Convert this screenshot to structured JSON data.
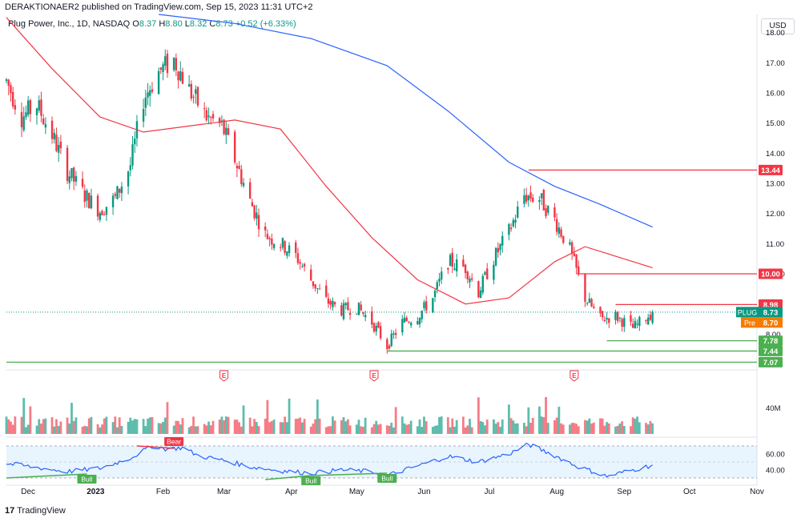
{
  "header": {
    "publisher": "DERAKTIONAER2 published on TradingView.com, Sep 15, 2023 11:31 UTC+2",
    "symbol": "Plug Power, Inc., 1D, NASDAQ",
    "o_label": "O",
    "o_value": "8.37",
    "h_label": "H",
    "h_value": "8.80",
    "l_label": "L",
    "l_value": "8.32",
    "c_label": "C",
    "c_value": "8.73",
    "change": "+0.52 (+6.33%)",
    "currency": "USD"
  },
  "footer": {
    "brand": "TradingView"
  },
  "chart_data": {
    "type": "candlestick",
    "y_axis": {
      "range": [
        7.0,
        18.6
      ],
      "ticks": [
        8.0,
        9.0,
        10.0,
        11.0,
        12.0,
        13.0,
        14.0,
        15.0,
        16.0,
        17.0,
        18.0
      ],
      "tick_labels": [
        "8.00",
        "9.00",
        "10.00",
        "11.00",
        "12.00",
        "13.00",
        "14.00",
        "15.00",
        "16.00",
        "17.00",
        "18.00"
      ]
    },
    "x_axis": {
      "range": [
        "2022-11-21",
        "2023-11-01"
      ],
      "ticks": [
        {
          "date": "2022-12-01",
          "label": "Dec"
        },
        {
          "date": "2023-01-01",
          "label": "2023"
        },
        {
          "date": "2023-02-01",
          "label": "Feb"
        },
        {
          "date": "2023-03-01",
          "label": "Mar"
        },
        {
          "date": "2023-04-01",
          "label": "Apr"
        },
        {
          "date": "2023-05-01",
          "label": "May"
        },
        {
          "date": "2023-06-01",
          "label": "Jun"
        },
        {
          "date": "2023-07-01",
          "label": "Jul"
        },
        {
          "date": "2023-08-01",
          "label": "Aug"
        },
        {
          "date": "2023-09-01",
          "label": "Sep"
        },
        {
          "date": "2023-10-01",
          "label": "Oct"
        },
        {
          "date": "2023-11-01",
          "label": "Nov"
        }
      ]
    },
    "price_path": [
      [
        "2022-11-21",
        16.4
      ],
      [
        "2022-11-28",
        15.2
      ],
      [
        "2022-12-05",
        15.6
      ],
      [
        "2022-12-12",
        14.6
      ],
      [
        "2022-12-19",
        13.4
      ],
      [
        "2022-12-27",
        12.6
      ],
      [
        "2023-01-03",
        12.1
      ],
      [
        "2023-01-10",
        12.5
      ],
      [
        "2023-01-17",
        13.6
      ],
      [
        "2023-01-23",
        15.8
      ],
      [
        "2023-01-30",
        16.7
      ],
      [
        "2023-02-06",
        17.1
      ],
      [
        "2023-02-13",
        16.1
      ],
      [
        "2023-02-21",
        15.2
      ],
      [
        "2023-02-28",
        14.9
      ],
      [
        "2023-03-06",
        13.8
      ],
      [
        "2023-03-13",
        12.4
      ],
      [
        "2023-03-20",
        11.3
      ],
      [
        "2023-03-27",
        11.0
      ],
      [
        "2023-04-03",
        10.6
      ],
      [
        "2023-04-10",
        9.8
      ],
      [
        "2023-04-17",
        9.1
      ],
      [
        "2023-04-24",
        8.8
      ],
      [
        "2023-05-01",
        8.9
      ],
      [
        "2023-05-08",
        8.4
      ],
      [
        "2023-05-15",
        7.6
      ],
      [
        "2023-05-22",
        8.4
      ],
      [
        "2023-05-29",
        8.6
      ],
      [
        "2023-06-05",
        9.2
      ],
      [
        "2023-06-12",
        10.4
      ],
      [
        "2023-06-20",
        10.2
      ],
      [
        "2023-06-26",
        9.4
      ],
      [
        "2023-07-03",
        10.5
      ],
      [
        "2023-07-10",
        11.4
      ],
      [
        "2023-07-17",
        12.6
      ],
      [
        "2023-07-24",
        12.5
      ],
      [
        "2023-07-31",
        11.8
      ],
      [
        "2023-08-07",
        10.8
      ],
      [
        "2023-08-14",
        9.2
      ],
      [
        "2023-08-21",
        8.5
      ],
      [
        "2023-08-28",
        8.6
      ],
      [
        "2023-09-05",
        8.2
      ],
      [
        "2023-09-14",
        8.73
      ]
    ],
    "last_candle": {
      "date": "2023-09-14",
      "open": 8.37,
      "high": 8.8,
      "low": 8.32,
      "close": 8.73
    },
    "moving_averages": [
      {
        "color": "#f23645",
        "points": [
          [
            "2022-11-21",
            18.5
          ],
          [
            "2022-12-12",
            16.8
          ],
          [
            "2023-01-03",
            15.2
          ],
          [
            "2023-01-23",
            14.7
          ],
          [
            "2023-02-13",
            14.9
          ],
          [
            "2023-03-06",
            15.1
          ],
          [
            "2023-03-27",
            14.8
          ],
          [
            "2023-04-17",
            12.9
          ],
          [
            "2023-05-08",
            11.2
          ],
          [
            "2023-05-29",
            9.8
          ],
          [
            "2023-06-20",
            9.0
          ],
          [
            "2023-07-10",
            9.2
          ],
          [
            "2023-07-31",
            10.4
          ],
          [
            "2023-08-14",
            10.9
          ],
          [
            "2023-09-14",
            10.2
          ]
        ]
      },
      {
        "color": "#2962ff",
        "points": [
          [
            "2023-01-30",
            18.6
          ],
          [
            "2023-03-06",
            18.3
          ],
          [
            "2023-04-10",
            17.8
          ],
          [
            "2023-05-15",
            16.9
          ],
          [
            "2023-06-12",
            15.4
          ],
          [
            "2023-07-10",
            13.7
          ],
          [
            "2023-07-31",
            12.9
          ],
          [
            "2023-08-21",
            12.3
          ],
          [
            "2023-09-14",
            11.55
          ]
        ]
      }
    ],
    "horizontal_levels": [
      {
        "value": 13.44,
        "label": "13.44",
        "color": "#f23645",
        "from": "2023-07-19"
      },
      {
        "value": 10.0,
        "label": "10.00",
        "color": "#f23645",
        "from": "2023-08-10"
      },
      {
        "value": 8.98,
        "label": "8.98",
        "color": "#f23645",
        "from": "2023-08-28"
      },
      {
        "value": 7.78,
        "label": "7.78",
        "color": "#4caf50",
        "from": "2023-08-24"
      },
      {
        "value": 7.44,
        "label": "7.44",
        "color": "#4caf50",
        "from": "2023-05-15"
      },
      {
        "value": 7.07,
        "label": "7.07",
        "color": "#4caf50",
        "from": "2022-11-21"
      }
    ],
    "price_badges": [
      {
        "label": "PLUG",
        "value": "8.73",
        "color": "#089981"
      },
      {
        "label": "Pre",
        "value": "8.70",
        "color": "#f57c00"
      }
    ],
    "earnings_markers": [
      {
        "date": "2023-03-01",
        "label": "E"
      },
      {
        "date": "2023-05-09",
        "label": "E"
      },
      {
        "date": "2023-08-09",
        "label": "E"
      }
    ],
    "volume": {
      "axis_label": "40M"
    },
    "rsi": {
      "levels": [
        70,
        30
      ],
      "tick_labels": [
        "60.00",
        "40.00"
      ],
      "tick_values": [
        60,
        40
      ],
      "points": [
        [
          "2022-11-21",
          48
        ],
        [
          "2022-12-05",
          43
        ],
        [
          "2022-12-19",
          38
        ],
        [
          "2023-01-03",
          42
        ],
        [
          "2023-01-17",
          55
        ],
        [
          "2023-01-27",
          70
        ],
        [
          "2023-02-03",
          66
        ],
        [
          "2023-02-10",
          68
        ],
        [
          "2023-02-17",
          58
        ],
        [
          "2023-03-01",
          52
        ],
        [
          "2023-03-13",
          44
        ],
        [
          "2023-03-27",
          39
        ],
        [
          "2023-04-10",
          36
        ],
        [
          "2023-04-24",
          40
        ],
        [
          "2023-05-08",
          38
        ],
        [
          "2023-05-15",
          33
        ],
        [
          "2023-05-29",
          45
        ],
        [
          "2023-06-12",
          57
        ],
        [
          "2023-06-26",
          50
        ],
        [
          "2023-07-10",
          60
        ],
        [
          "2023-07-19",
          72
        ],
        [
          "2023-07-31",
          58
        ],
        [
          "2023-08-10",
          45
        ],
        [
          "2023-08-24",
          32
        ],
        [
          "2023-09-05",
          40
        ],
        [
          "2023-09-14",
          46
        ]
      ],
      "divergences": [
        {
          "type": "Bear",
          "color": "#f23645",
          "from": [
            "2023-01-20",
            70
          ],
          "to": [
            "2023-02-06",
            67
          ]
        },
        {
          "type": "Bull",
          "color": "#4caf50",
          "from": [
            "2022-11-21",
            30
          ],
          "to": [
            "2022-12-28",
            35
          ]
        },
        {
          "type": "Bull",
          "color": "#4caf50",
          "from": [
            "2023-03-20",
            28
          ],
          "to": [
            "2023-04-10",
            33
          ]
        },
        {
          "type": "Bull",
          "color": "#4caf50",
          "from": [
            "2023-04-10",
            33
          ],
          "to": [
            "2023-05-15",
            36
          ]
        }
      ]
    }
  }
}
